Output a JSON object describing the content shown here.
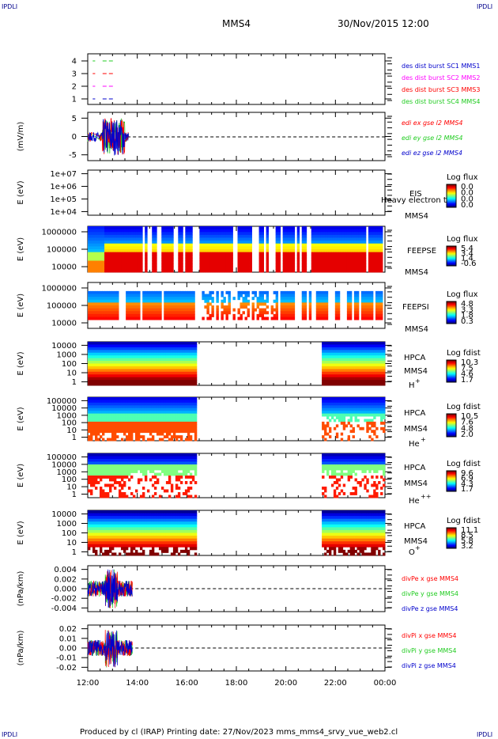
{
  "corners": {
    "tl": "IPDLI",
    "tr": "IPDLI",
    "bl": "IPDLI",
    "br": "IPDLI"
  },
  "header": {
    "spacecraft": "MMS4",
    "datetime": "30/Nov/2015 12:00"
  },
  "footer": {
    "text": "Produced by cl (IRAP)   Printing date: 27/Nov/2023   mms_mms4_srvy_vue_web2.cl"
  },
  "colors": {
    "red": "#ff0000",
    "green": "#22cc22",
    "blue": "#0000cc",
    "magenta": "#ff00ff",
    "dark_blue": "#00008b"
  },
  "chart_data": {
    "type": "multi-panel-timeseries",
    "time_axis": {
      "ticks": [
        "12:00",
        "14:00",
        "16:00",
        "18:00",
        "20:00",
        "22:00",
        "00:00"
      ],
      "start_hour": 12,
      "end_hour": 24
    },
    "panels": [
      {
        "id": "burst",
        "ylabel": "",
        "yticks": [
          "4",
          "3",
          "2",
          "1"
        ],
        "legend": [
          {
            "text": "des dist burst SC1 MMS1",
            "color": "#0000cc"
          },
          {
            "text": "des dist burst SC2 MMS2",
            "color": "#ff00ff"
          },
          {
            "text": "des dist burst SC3 MMS3",
            "color": "#ff0000"
          },
          {
            "text": "des dist burst SC4 MMS4",
            "color": "#22cc22"
          }
        ]
      },
      {
        "id": "efield",
        "ylabel": "(mV/m)",
        "yticks": [
          "5",
          "0",
          "-5"
        ],
        "legend": [
          {
            "text": "edi ex gse l2 MMS4",
            "color": "#ff0000"
          },
          {
            "text": "edi ey gse l2 MMS4",
            "color": "#22cc22"
          },
          {
            "text": "edi ez gse l2 MMS4",
            "color": "#0000cc"
          }
        ]
      },
      {
        "id": "eis",
        "ylabel": "E (eV)",
        "yticks": [
          "1e+07",
          "1e+06",
          "1e+05",
          "1e+04"
        ],
        "labels": [
          "EIS",
          "MMS4"
        ],
        "overlay": "Heavy electron to",
        "cbar_title": "Log flux",
        "cbar_ticks": [
          "0.0",
          "0.0",
          "0.0",
          "0.0"
        ]
      },
      {
        "id": "feepse",
        "ylabel": "E (eV)",
        "yticks": [
          "1000000",
          "100000",
          "10000"
        ],
        "labels": [
          "FEEPSE",
          "MMS4"
        ],
        "cbar_title": "Log flux",
        "cbar_ticks": [
          "5.4",
          "3.4",
          "1.4",
          "-0.6"
        ]
      },
      {
        "id": "feepsi",
        "ylabel": "E (eV)",
        "yticks": [
          "1000000",
          "100000",
          "10000"
        ],
        "labels": [
          "FEEPSI",
          "MMS4"
        ],
        "cbar_title": "Log flux",
        "cbar_ticks": [
          "4.8",
          "3.3",
          "1.8",
          "0.3"
        ]
      },
      {
        "id": "hpca_h",
        "ylabel": "E (eV)",
        "yticks": [
          "10000",
          "1000",
          "100",
          "10",
          "1"
        ],
        "labels": [
          "HPCA",
          "MMS4"
        ],
        "species": "H",
        "species_sup": "+",
        "cbar_title": "Log fdist",
        "cbar_ticks": [
          "10.3",
          "7.5",
          "4.6",
          "1.7"
        ]
      },
      {
        "id": "hpca_he",
        "ylabel": "E (eV)",
        "yticks": [
          "100000",
          "10000",
          "1000",
          "100",
          "10",
          "1"
        ],
        "labels": [
          "HPCA",
          "MMS4"
        ],
        "species": "He",
        "species_sup": "+",
        "cbar_title": "Log fdist",
        "cbar_ticks": [
          "10.5",
          "7.6",
          "4.8",
          "2.0"
        ]
      },
      {
        "id": "hpca_hepp",
        "ylabel": "E (eV)",
        "yticks": [
          "100000",
          "10000",
          "1000",
          "100",
          "10",
          "1"
        ],
        "labels": [
          "HPCA",
          "MMS4"
        ],
        "species": "He",
        "species_sup": "++",
        "cbar_title": "Log fdist",
        "cbar_ticks": [
          "9.6",
          "6.9",
          "4.3",
          "1.7"
        ]
      },
      {
        "id": "hpca_o",
        "ylabel": "E (eV)",
        "yticks": [
          "10000",
          "1000",
          "100",
          "10",
          "1"
        ],
        "labels": [
          "HPCA",
          "MMS4"
        ],
        "species": "O",
        "species_sup": "+",
        "cbar_title": "Log fdist",
        "cbar_ticks": [
          "11.1",
          "8.5",
          "5.8",
          "3.2"
        ]
      },
      {
        "id": "divpe",
        "ylabel": "(nPa/km)",
        "yticks": [
          "0.004",
          "0.002",
          "0.000",
          "-0.002",
          "-0.004"
        ],
        "legend": [
          {
            "text": "divPe x gse MMS4",
            "color": "#ff0000"
          },
          {
            "text": "divPe y gse MMS4",
            "color": "#22cc22"
          },
          {
            "text": "divPe z gse MMS4",
            "color": "#0000cc"
          }
        ]
      },
      {
        "id": "divpi",
        "ylabel": "(nPa/km)",
        "yticks": [
          "0.02",
          "0.01",
          "0.00",
          "-0.01",
          "-0.02"
        ],
        "legend": [
          {
            "text": "divPi x gse MMS4",
            "color": "#ff0000"
          },
          {
            "text": "divPi y gse MMS4",
            "color": "#22cc22"
          },
          {
            "text": "divPi z gse MMS4",
            "color": "#0000cc"
          }
        ]
      }
    ]
  }
}
